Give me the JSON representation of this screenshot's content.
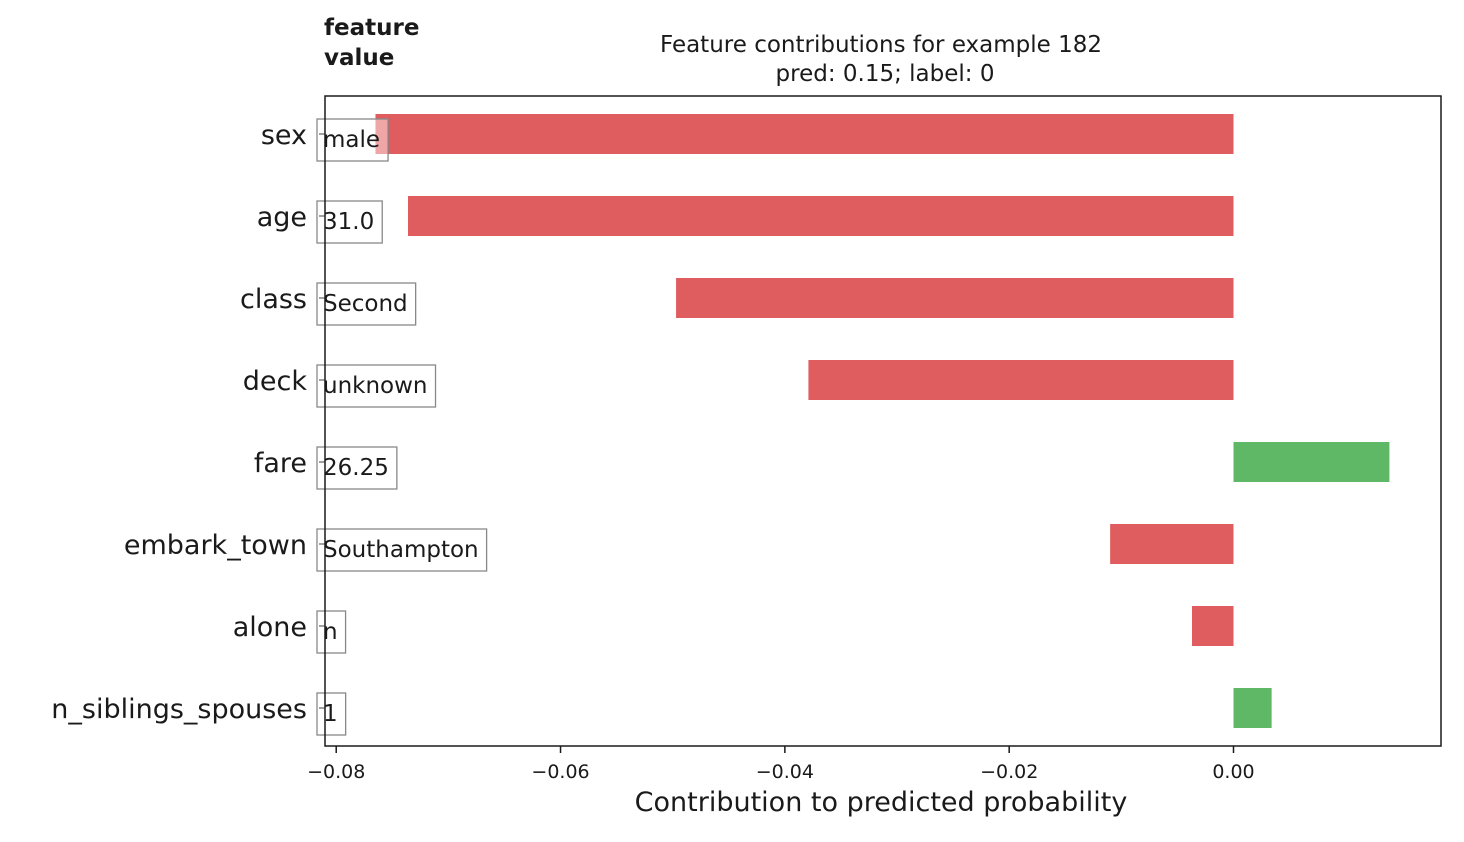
{
  "chart_data": {
    "type": "bar",
    "orientation": "horizontal",
    "title": "Feature contributions for example 182",
    "subtitle": "pred: 0.15; label: 0",
    "header_label": "feature\nvalue",
    "xlabel": "Contribution to predicted probability",
    "ylabel": "",
    "xlim": [
      -0.081,
      0.0185
    ],
    "xticks": [
      -0.08,
      -0.06,
      -0.04,
      -0.02,
      0.0
    ],
    "xtick_labels": [
      "−0.08",
      "−0.06",
      "−0.04",
      "−0.02",
      "0.00"
    ],
    "grid": false,
    "categories": [
      "sex",
      "age",
      "class",
      "deck",
      "fare",
      "embark_town",
      "alone",
      "n_siblings_spouses"
    ],
    "feature_values": [
      "male",
      "31.0",
      "Second",
      "unknown",
      "26.25",
      "Southampton",
      "n",
      "1"
    ],
    "values": [
      -0.0765,
      -0.0736,
      -0.0497,
      -0.0379,
      0.0139,
      -0.011,
      -0.0037,
      0.0034
    ],
    "colors": {
      "negative": "#e05d5f",
      "positive": "#5eb865",
      "axis": "#1a1a1a",
      "box": "#888888"
    }
  }
}
